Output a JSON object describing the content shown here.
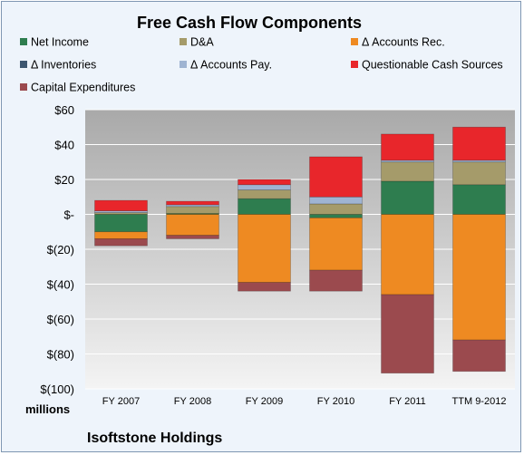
{
  "chart_data": {
    "type": "bar",
    "stacked": true,
    "title": "Free Cash Flow Components",
    "company": "Isoftstone Holdings",
    "ylabel_unit": "millions",
    "categories": [
      "FY 2007",
      "FY 2008",
      "FY 2009",
      "FY 2010",
      "FY 2011",
      "TTM 9-2012"
    ],
    "ylim": [
      -100,
      60
    ],
    "yticks": [
      60,
      40,
      20,
      0,
      -20,
      -40,
      -60,
      -80,
      -100
    ],
    "ytick_labels": [
      "$60",
      "$40",
      "$20",
      "$-",
      "$(20)",
      "$(40)",
      "$(60)",
      "$(80)",
      "$(100)"
    ],
    "legend_position": "top",
    "grid": true,
    "series": [
      {
        "name": "Net Income",
        "color": "#2e7d4f",
        "values": [
          -10,
          0.5,
          9,
          -2,
          19,
          17
        ]
      },
      {
        "name": "D&A",
        "color": "#a59b6a",
        "values": [
          1,
          4,
          5,
          6,
          11,
          13
        ]
      },
      {
        "name": "Δ Accounts Rec.",
        "color": "#ee8a22",
        "values": [
          -4,
          -12,
          -39,
          -30,
          -46,
          -72
        ]
      },
      {
        "name": "Δ Inventories",
        "color": "#3d5670",
        "values": [
          0,
          0,
          0,
          0,
          0,
          0
        ]
      },
      {
        "name": "Δ Accounts Pay.",
        "color": "#9fb4d2",
        "values": [
          1,
          1,
          3,
          4,
          1,
          1
        ]
      },
      {
        "name": "Questionable Cash Sources",
        "color": "#e8262b",
        "values": [
          6,
          2,
          3,
          23,
          15,
          19
        ]
      },
      {
        "name": "Capital Expenditures",
        "color": "#9b4a4e",
        "values": [
          -4,
          -2,
          -5,
          -12,
          -45,
          -18
        ]
      }
    ]
  }
}
